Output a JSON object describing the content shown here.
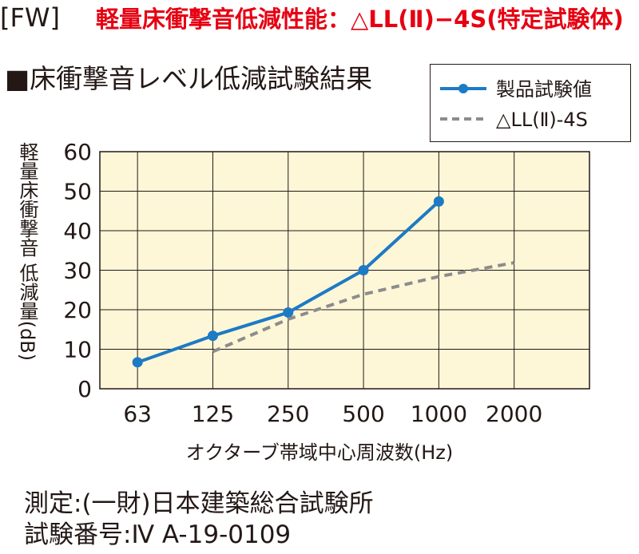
{
  "header": {
    "tag": "[FW]",
    "title": "軽量床衝撃音低減性能：△LL(Ⅱ)−4S(特定試験体)"
  },
  "section_title": "■床衝撃音レベル低減試験結果",
  "legend": {
    "items": [
      {
        "label": "製品試験値",
        "color": "#1d7ac4",
        "style": "solid-marker"
      },
      {
        "label": "△LL(Ⅱ)-4S",
        "color": "#8c8c8c",
        "style": "dashed"
      }
    ]
  },
  "chart_data": {
    "type": "line",
    "ylabel": "軽量床衝撃音 低減量(dB)",
    "xlabel": "オクターブ帯域中心周波数(Hz)",
    "categories": [
      "63",
      "125",
      "250",
      "500",
      "1000",
      "2000"
    ],
    "ylim": [
      0,
      60
    ],
    "yticks": [
      0,
      10,
      20,
      30,
      40,
      50,
      60
    ],
    "grid": true,
    "plot_background": "#fdf7d8",
    "legend_position": "top-right",
    "series": [
      {
        "name": "製品試験値",
        "color": "#1d7ac4",
        "values": [
          6.7,
          13.4,
          19.3,
          30.0,
          47.4,
          null
        ]
      },
      {
        "name": "△LL(Ⅱ)-4S",
        "color": "#8c8c8c",
        "values": [
          null,
          9.4,
          17.6,
          23.9,
          28.4,
          31.9
        ]
      }
    ]
  },
  "footer": {
    "line1": "測定:(一財)日本建築総合試験所",
    "line2": "試験番号:Ⅳ A-19-0109"
  }
}
